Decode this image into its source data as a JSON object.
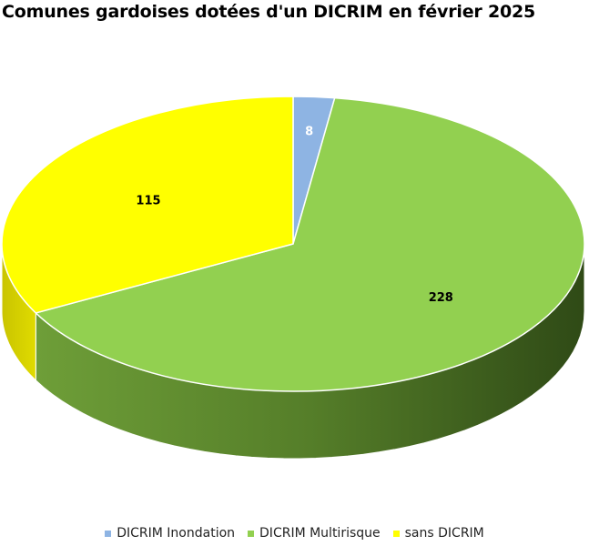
{
  "chart_data": {
    "type": "pie",
    "title": "Comunes gardoises dotées d'un DICRIM en février 2025",
    "series": [
      {
        "name": "DICRIM Inondation",
        "value": 8,
        "label": "8",
        "color": "#8EB4E3",
        "label_color": "#ffffff"
      },
      {
        "name": "DICRIM Multirisque",
        "value": 228,
        "label": "228",
        "color": "#92D050",
        "label_color": "#000000"
      },
      {
        "name": "sans DICRIM",
        "value": 115,
        "label": "115",
        "color": "#FFFF00",
        "label_color": "#000000"
      }
    ],
    "legend_position": "bottom",
    "style": "3d-tilted"
  }
}
